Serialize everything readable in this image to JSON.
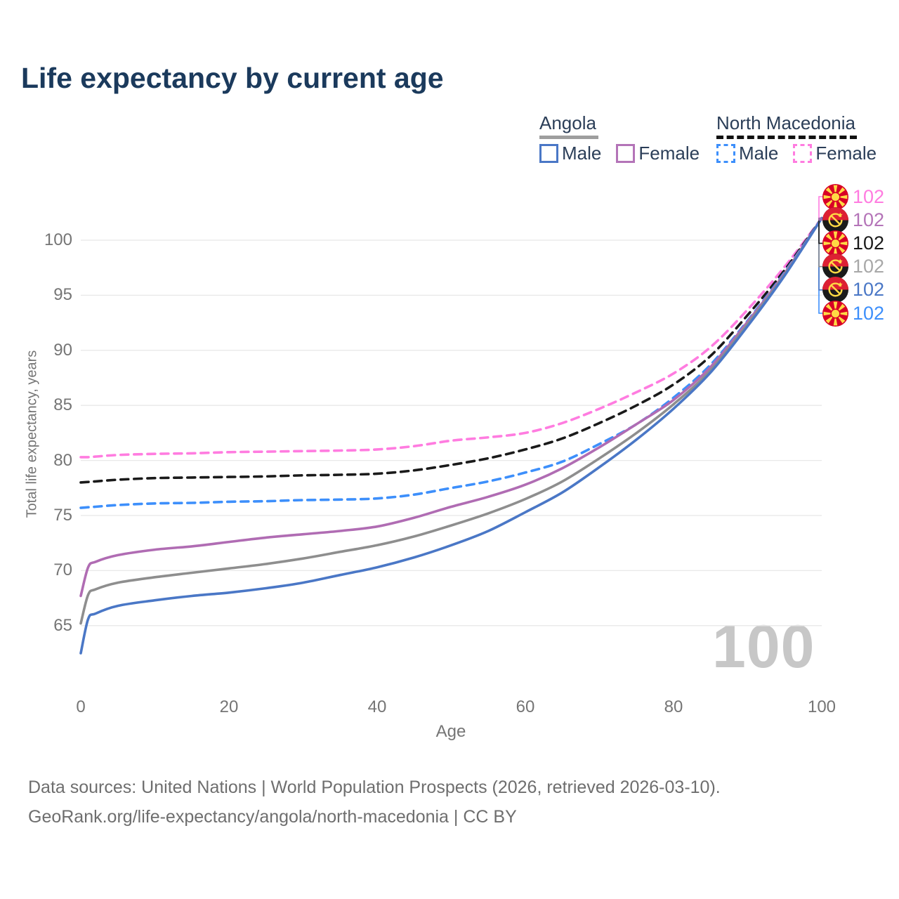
{
  "title": "Life expectancy by current age",
  "watermark": "100",
  "legend": {
    "groups": [
      {
        "name": "Angola",
        "underline_style": "solid",
        "underline_color": "#9e9e9e",
        "items": [
          {
            "label": "Male",
            "color": "#4a77c6",
            "dashed": false
          },
          {
            "label": "Female",
            "color": "#b474b8",
            "dashed": false
          }
        ]
      },
      {
        "name": "North Macedonia",
        "underline_style": "dashed",
        "underline_color": "#111111",
        "items": [
          {
            "label": "Male",
            "color": "#3d8ffb",
            "dashed": true
          },
          {
            "label": "Female",
            "color": "#ff7ce0",
            "dashed": true
          }
        ]
      }
    ]
  },
  "footer": {
    "line1": "Data sources: United Nations | World Population Prospects (2026, retrieved 2026-03-10).",
    "line2": "GeoRank.org/life-expectancy/angola/north-macedonia | CC BY"
  },
  "chart_data": {
    "type": "line",
    "title": "Life expectancy by current age",
    "xlabel": "Age",
    "ylabel": "Total life expectancy, years",
    "x_ticks": [
      0,
      20,
      40,
      60,
      80,
      100
    ],
    "y_ticks": [
      65,
      70,
      75,
      80,
      85,
      90,
      95,
      100
    ],
    "xlim": [
      0,
      100
    ],
    "grid": "horizontal",
    "legend_position": "top-right",
    "x": [
      0,
      1,
      2,
      5,
      10,
      15,
      20,
      25,
      30,
      35,
      40,
      45,
      50,
      55,
      60,
      65,
      70,
      75,
      80,
      85,
      90,
      95,
      100
    ],
    "series": [
      {
        "name": "North Macedonia Female",
        "country": "North Macedonia",
        "sex": "Female",
        "style": "dashed",
        "color": "#ff7ce0",
        "flag": "mk",
        "row": 0,
        "end_label": "102",
        "end_label_color": "#ff7ce0",
        "values": [
          80.3,
          80.3,
          80.35,
          80.5,
          80.6,
          80.65,
          80.75,
          80.8,
          80.85,
          80.9,
          81.0,
          81.3,
          81.8,
          82.1,
          82.5,
          83.4,
          84.7,
          86.2,
          87.9,
          90.3,
          93.7,
          97.6,
          102
        ]
      },
      {
        "name": "North Macedonia All",
        "country": "North Macedonia",
        "sex": "All",
        "style": "dashed",
        "color": "#1a1a1a",
        "flag": "mk",
        "row": 2,
        "end_label": "102",
        "end_label_color": "#1a1a1a",
        "values": [
          78.0,
          78.05,
          78.1,
          78.25,
          78.4,
          78.45,
          78.5,
          78.55,
          78.65,
          78.7,
          78.8,
          79.1,
          79.6,
          80.2,
          81.0,
          82.0,
          83.4,
          85.0,
          86.9,
          89.5,
          93.2,
          97.3,
          102
        ]
      },
      {
        "name": "North Macedonia Male",
        "country": "North Macedonia",
        "sex": "Male",
        "style": "dashed",
        "color": "#3d8ffb",
        "flag": "mk",
        "row": 5,
        "end_label": "102",
        "end_label_color": "#3d8ffb",
        "values": [
          75.7,
          75.75,
          75.8,
          75.95,
          76.1,
          76.15,
          76.25,
          76.3,
          76.4,
          76.45,
          76.55,
          76.9,
          77.5,
          78.1,
          78.9,
          79.9,
          81.5,
          83.3,
          85.7,
          88.7,
          92.7,
          97.1,
          102
        ]
      },
      {
        "name": "Angola Female",
        "country": "Angola",
        "sex": "Female",
        "style": "solid",
        "color": "#b06cb3",
        "flag": "ao",
        "row": 1,
        "end_label": "102",
        "end_label_color": "#b474b8",
        "values": [
          67.7,
          70.3,
          70.8,
          71.4,
          71.9,
          72.2,
          72.6,
          73.0,
          73.3,
          73.6,
          74.0,
          74.8,
          75.8,
          76.7,
          77.8,
          79.3,
          81.2,
          83.3,
          85.5,
          88.5,
          92.6,
          97.0,
          102
        ]
      },
      {
        "name": "Angola All",
        "country": "Angola",
        "sex": "All",
        "style": "solid",
        "color": "#8e8e8e",
        "flag": "ao",
        "row": 3,
        "end_label": "102",
        "end_label_color": "#a8a8a8",
        "values": [
          65.2,
          67.8,
          68.3,
          68.9,
          69.4,
          69.8,
          70.2,
          70.6,
          71.1,
          71.7,
          72.3,
          73.1,
          74.1,
          75.2,
          76.5,
          78.1,
          80.2,
          82.5,
          85.1,
          88.2,
          92.4,
          96.9,
          102
        ]
      },
      {
        "name": "Angola Male",
        "country": "Angola",
        "sex": "Male",
        "style": "solid",
        "color": "#4a77c6",
        "flag": "ao",
        "row": 4,
        "end_label": "102",
        "end_label_color": "#4a77c6",
        "values": [
          62.5,
          65.6,
          66.1,
          66.8,
          67.3,
          67.7,
          68.0,
          68.4,
          68.9,
          69.6,
          70.3,
          71.2,
          72.3,
          73.6,
          75.3,
          77.1,
          79.4,
          81.9,
          84.7,
          88.0,
          92.2,
          96.8,
          102
        ]
      }
    ]
  }
}
